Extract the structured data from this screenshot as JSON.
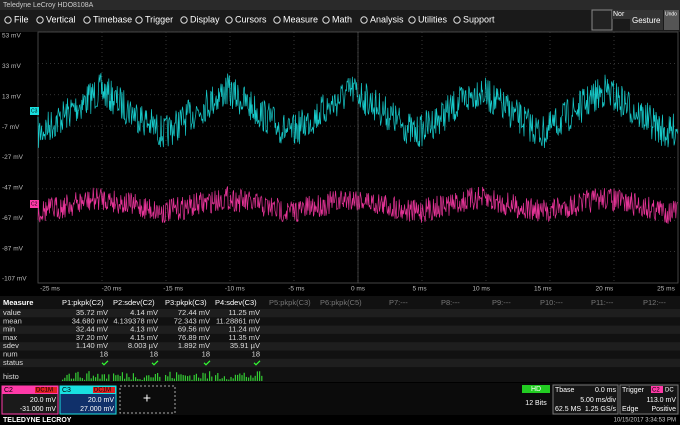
{
  "menu": {
    "title": "Teledyne LeCroy HDO8108A",
    "items": [
      "File",
      "Vertical",
      "Timebase",
      "Trigger",
      "Display",
      "Cursors",
      "Measure",
      "Math",
      "Analysis",
      "Utilities",
      "Support"
    ],
    "right": [
      "Nor",
      "Gesture",
      "Undo"
    ]
  },
  "plot": {
    "y_labels": [
      "53 mV",
      "33 mV",
      "13 mV",
      "-7 mV",
      "-27 mV",
      "-47 mV",
      "-67 mV",
      "-87 mV",
      "-107 mV"
    ],
    "x_labels": [
      "-25 ms",
      "-20 ms",
      "-15 ms",
      "-10 ms",
      "-5 ms",
      "0 ms",
      "5 ms",
      "10 ms",
      "15 ms",
      "20 ms",
      "25 ms"
    ],
    "channel_markers": [
      "C3",
      "C2"
    ]
  },
  "measure": {
    "headers": [
      "Measure",
      "P1:pkpk(C2)",
      "P2:sdev(C2)",
      "P3:pkpk(C3)",
      "P4:sdev(C3)",
      "P5:pkpk(C3)",
      "P6:pkpk(C5)",
      "P7:---",
      "P8:---",
      "P9:---",
      "P10:---",
      "P11:---",
      "P12:---"
    ],
    "rows": [
      {
        "label": "value",
        "cells": [
          "35.72 mV",
          "4.14 mV",
          "72.44 mV",
          "11.25 mV"
        ]
      },
      {
        "label": "mean",
        "cells": [
          "34.680 mV",
          "4.139378 mV",
          "72.343 mV",
          "11.28861 mV"
        ]
      },
      {
        "label": "min",
        "cells": [
          "32.44 mV",
          "4.13 mV",
          "69.56 mV",
          "11.24 mV"
        ]
      },
      {
        "label": "max",
        "cells": [
          "37.20 mV",
          "4.15 mV",
          "76.89 mV",
          "11.35 mV"
        ]
      },
      {
        "label": "sdev",
        "cells": [
          "1.140 mV",
          "8.003 µV",
          "1.892 mV",
          "35.91 µV"
        ]
      },
      {
        "label": "num",
        "cells": [
          "18",
          "18",
          "18",
          "18"
        ]
      },
      {
        "label": "status",
        "cells": []
      }
    ],
    "histo_label": "histo"
  },
  "channels": [
    {
      "name": "C2",
      "coupling": "DC1M",
      "scale": "20.0 mV",
      "offset": "-31.000 mV"
    },
    {
      "name": "C3",
      "coupling": "DC1M",
      "scale": "20.0 mV",
      "offset": "27.000 mV"
    }
  ],
  "acquisition": {
    "mode": "HD",
    "bits": "12 Bits"
  },
  "timebase": {
    "label": "Tbase",
    "delay": "0.0 ms",
    "scale": "5.00 ms/div",
    "samples": "62.5 MS",
    "rate": "1.25 GS/s"
  },
  "trigger": {
    "label": "Trigger",
    "source": "C2",
    "coupling": "DC",
    "level": "113.0 mV",
    "type": "Edge",
    "slope": "Positive"
  },
  "footer": {
    "brand": "TELEDYNE LECROY",
    "datetime": "10/15/2017 3:34:53 PM"
  }
}
